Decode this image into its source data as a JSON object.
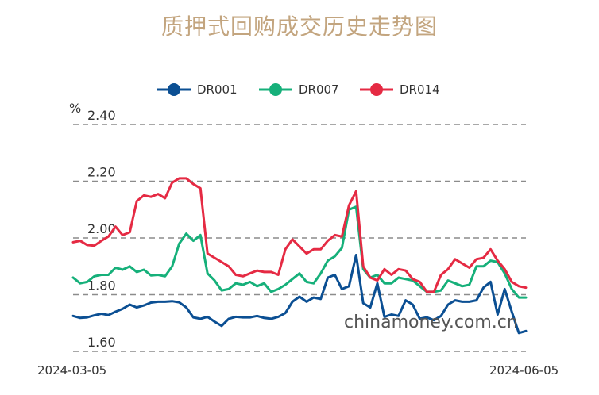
{
  "title": "质押式回购成交历史走势图",
  "watermark": "chinamoney.com.cn",
  "chart_data": {
    "type": "line",
    "title": "质押式回购成交历史走势图",
    "ylabel": "%",
    "ylim": [
      1.6,
      2.4
    ],
    "yticks": [
      1.6,
      1.8,
      2.0,
      2.2,
      2.4
    ],
    "ytick_labels": [
      "1.60",
      "1.80",
      "2.00",
      "2.20",
      "2.40"
    ],
    "x_start_label": "2024-03-05",
    "x_end_label": "2024-06-05",
    "grid": "horizontal dashed",
    "legend_position": "top-center",
    "series": [
      {
        "name": "DR001",
        "color": "#0b4f93",
        "values": [
          1.725,
          1.718,
          1.72,
          1.727,
          1.733,
          1.728,
          1.74,
          1.75,
          1.765,
          1.755,
          1.762,
          1.772,
          1.775,
          1.775,
          1.777,
          1.773,
          1.755,
          1.72,
          1.715,
          1.722,
          1.705,
          1.69,
          1.715,
          1.722,
          1.72,
          1.72,
          1.725,
          1.718,
          1.715,
          1.722,
          1.735,
          1.775,
          1.793,
          1.775,
          1.79,
          1.785,
          1.86,
          1.87,
          1.82,
          1.83,
          1.94,
          1.77,
          1.755,
          1.84,
          1.722,
          1.73,
          1.725,
          1.78,
          1.765,
          1.715,
          1.72,
          1.71,
          1.725,
          1.765,
          1.78,
          1.775,
          1.775,
          1.78,
          1.825,
          1.845,
          1.73,
          1.82,
          1.74,
          1.665,
          1.672
        ]
      },
      {
        "name": "DR007",
        "color": "#16b07a",
        "values": [
          1.86,
          1.84,
          1.845,
          1.865,
          1.87,
          1.87,
          1.895,
          1.888,
          1.9,
          1.88,
          1.888,
          1.868,
          1.87,
          1.865,
          1.9,
          1.98,
          2.015,
          1.99,
          2.01,
          1.875,
          1.85,
          1.815,
          1.82,
          1.84,
          1.835,
          1.845,
          1.83,
          1.84,
          1.81,
          1.82,
          1.835,
          1.855,
          1.875,
          1.845,
          1.84,
          1.875,
          1.92,
          1.935,
          1.965,
          2.1,
          2.11,
          1.89,
          1.86,
          1.87,
          1.84,
          1.84,
          1.86,
          1.855,
          1.85,
          1.83,
          1.81,
          1.81,
          1.815,
          1.85,
          1.84,
          1.83,
          1.835,
          1.9,
          1.9,
          1.92,
          1.915,
          1.875,
          1.82,
          1.79,
          1.79
        ]
      },
      {
        "name": "DR014",
        "color": "#e52a43",
        "values": [
          1.985,
          1.99,
          1.975,
          1.973,
          1.99,
          2.005,
          2.04,
          2.01,
          2.02,
          2.13,
          2.15,
          2.145,
          2.155,
          2.14,
          2.195,
          2.21,
          2.21,
          2.19,
          2.175,
          1.945,
          1.93,
          1.915,
          1.9,
          1.87,
          1.865,
          1.875,
          1.885,
          1.88,
          1.88,
          1.87,
          1.96,
          1.995,
          1.97,
          1.945,
          1.96,
          1.96,
          1.99,
          2.01,
          2.005,
          2.115,
          2.165,
          1.9,
          1.86,
          1.85,
          1.89,
          1.87,
          1.89,
          1.885,
          1.855,
          1.845,
          1.81,
          1.81,
          1.87,
          1.89,
          1.925,
          1.91,
          1.895,
          1.925,
          1.93,
          1.96,
          1.92,
          1.89,
          1.845,
          1.83,
          1.825
        ]
      }
    ]
  }
}
